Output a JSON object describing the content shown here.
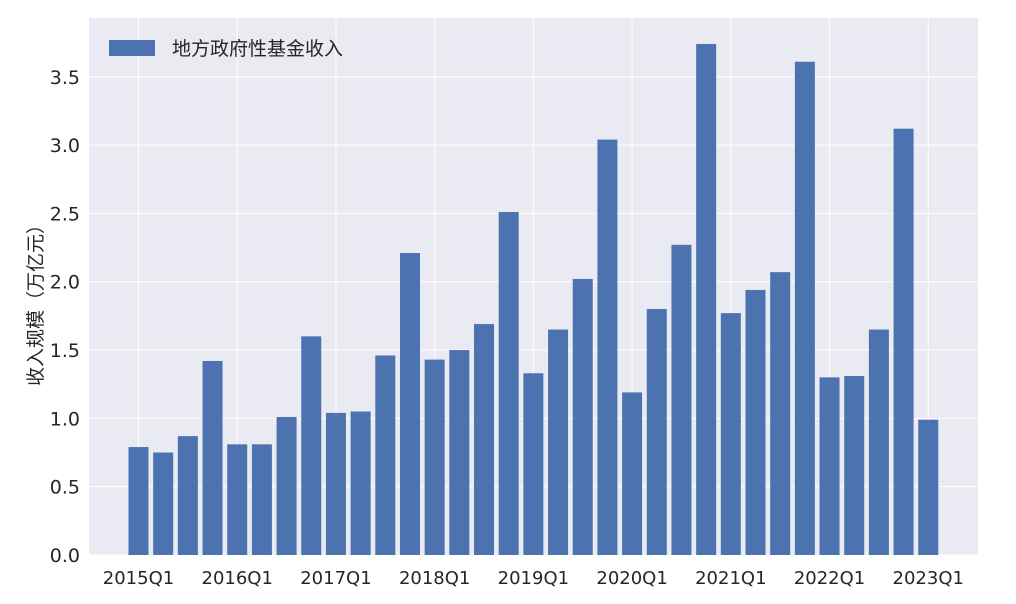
{
  "chart_data": {
    "type": "bar",
    "ylabel": "收入规模（万亿元）",
    "ylim": [
      0,
      3.93
    ],
    "yticks": [
      "0.0",
      "0.5",
      "1.0",
      "1.5",
      "2.0",
      "2.5",
      "3.0",
      "3.5"
    ],
    "grid": true,
    "legend_position": "top-left",
    "colors": {
      "plot_bg": "#EAEAF2",
      "bar": "#4C72B0",
      "grid": "#FFFFFF",
      "text": "#262626"
    },
    "categories": [
      "2015Q1",
      "2015Q2",
      "2015Q3",
      "2015Q4",
      "2016Q1",
      "2016Q2",
      "2016Q3",
      "2016Q4",
      "2017Q1",
      "2017Q2",
      "2017Q3",
      "2017Q4",
      "2018Q1",
      "2018Q2",
      "2018Q3",
      "2018Q4",
      "2019Q1",
      "2019Q2",
      "2019Q3",
      "2019Q4",
      "2020Q1",
      "2020Q2",
      "2020Q3",
      "2020Q4",
      "2021Q1",
      "2021Q2",
      "2021Q3",
      "2021Q4",
      "2022Q1",
      "2022Q2",
      "2022Q3",
      "2022Q4",
      "2023Q1"
    ],
    "xtick_labels": [
      "2015Q1",
      "2016Q1",
      "2017Q1",
      "2018Q1",
      "2019Q1",
      "2020Q1",
      "2021Q1",
      "2022Q1",
      "2023Q1"
    ],
    "series": [
      {
        "name": "地方政府性基金收入",
        "values": [
          0.79,
          0.75,
          0.87,
          1.42,
          0.81,
          0.81,
          1.01,
          1.6,
          1.04,
          1.05,
          1.46,
          2.21,
          1.43,
          1.5,
          1.69,
          2.51,
          1.33,
          1.65,
          2.02,
          3.04,
          1.19,
          1.8,
          2.27,
          3.74,
          1.77,
          1.94,
          2.07,
          3.61,
          1.3,
          1.31,
          1.65,
          3.12,
          0.99
        ]
      }
    ]
  }
}
